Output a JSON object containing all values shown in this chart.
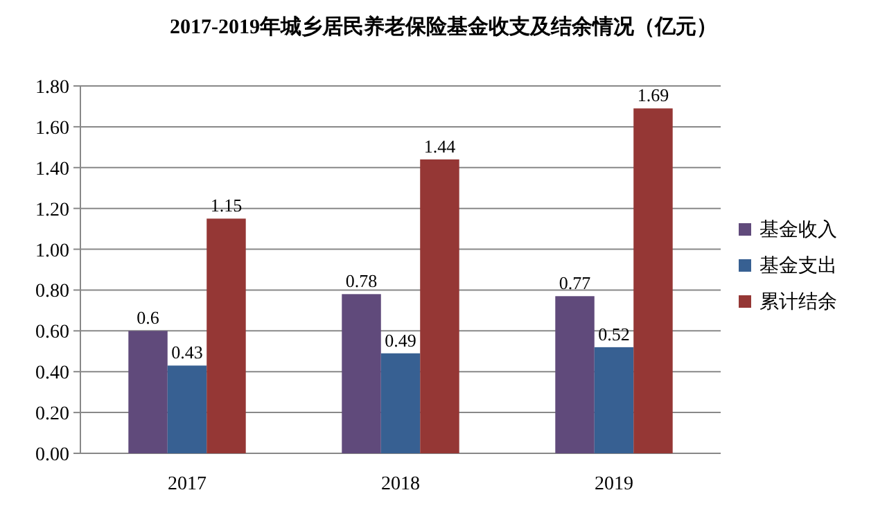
{
  "chart_data": {
    "type": "bar",
    "title": "2017-2019年城乡居民养老保险基金收支及结余情况（亿元）",
    "categories": [
      "2017",
      "2018",
      "2019"
    ],
    "series": [
      {
        "name": "基金收入",
        "color": "#604a7b",
        "values": [
          0.6,
          0.78,
          0.77
        ]
      },
      {
        "name": "基金支出",
        "color": "#376092",
        "values": [
          0.43,
          0.49,
          0.52
        ]
      },
      {
        "name": "累计结余",
        "color": "#953735",
        "values": [
          1.15,
          1.44,
          1.69
        ]
      }
    ],
    "ylim": [
      0,
      1.8
    ],
    "yticks": [
      {
        "value": 0,
        "label": "0.00"
      },
      {
        "value": 0.2,
        "label": "0.20"
      },
      {
        "value": 0.4,
        "label": "0.40"
      },
      {
        "value": 0.6,
        "label": "0.60"
      },
      {
        "value": 0.8,
        "label": "0.80"
      },
      {
        "value": 1.0,
        "label": "1.00"
      },
      {
        "value": 1.2,
        "label": "1.20"
      },
      {
        "value": 1.4,
        "label": "1.40"
      },
      {
        "value": 1.6,
        "label": "1.60"
      },
      {
        "value": 1.8,
        "label": "1.80"
      }
    ],
    "grid": "y",
    "legend": "right",
    "data_labels": true
  }
}
